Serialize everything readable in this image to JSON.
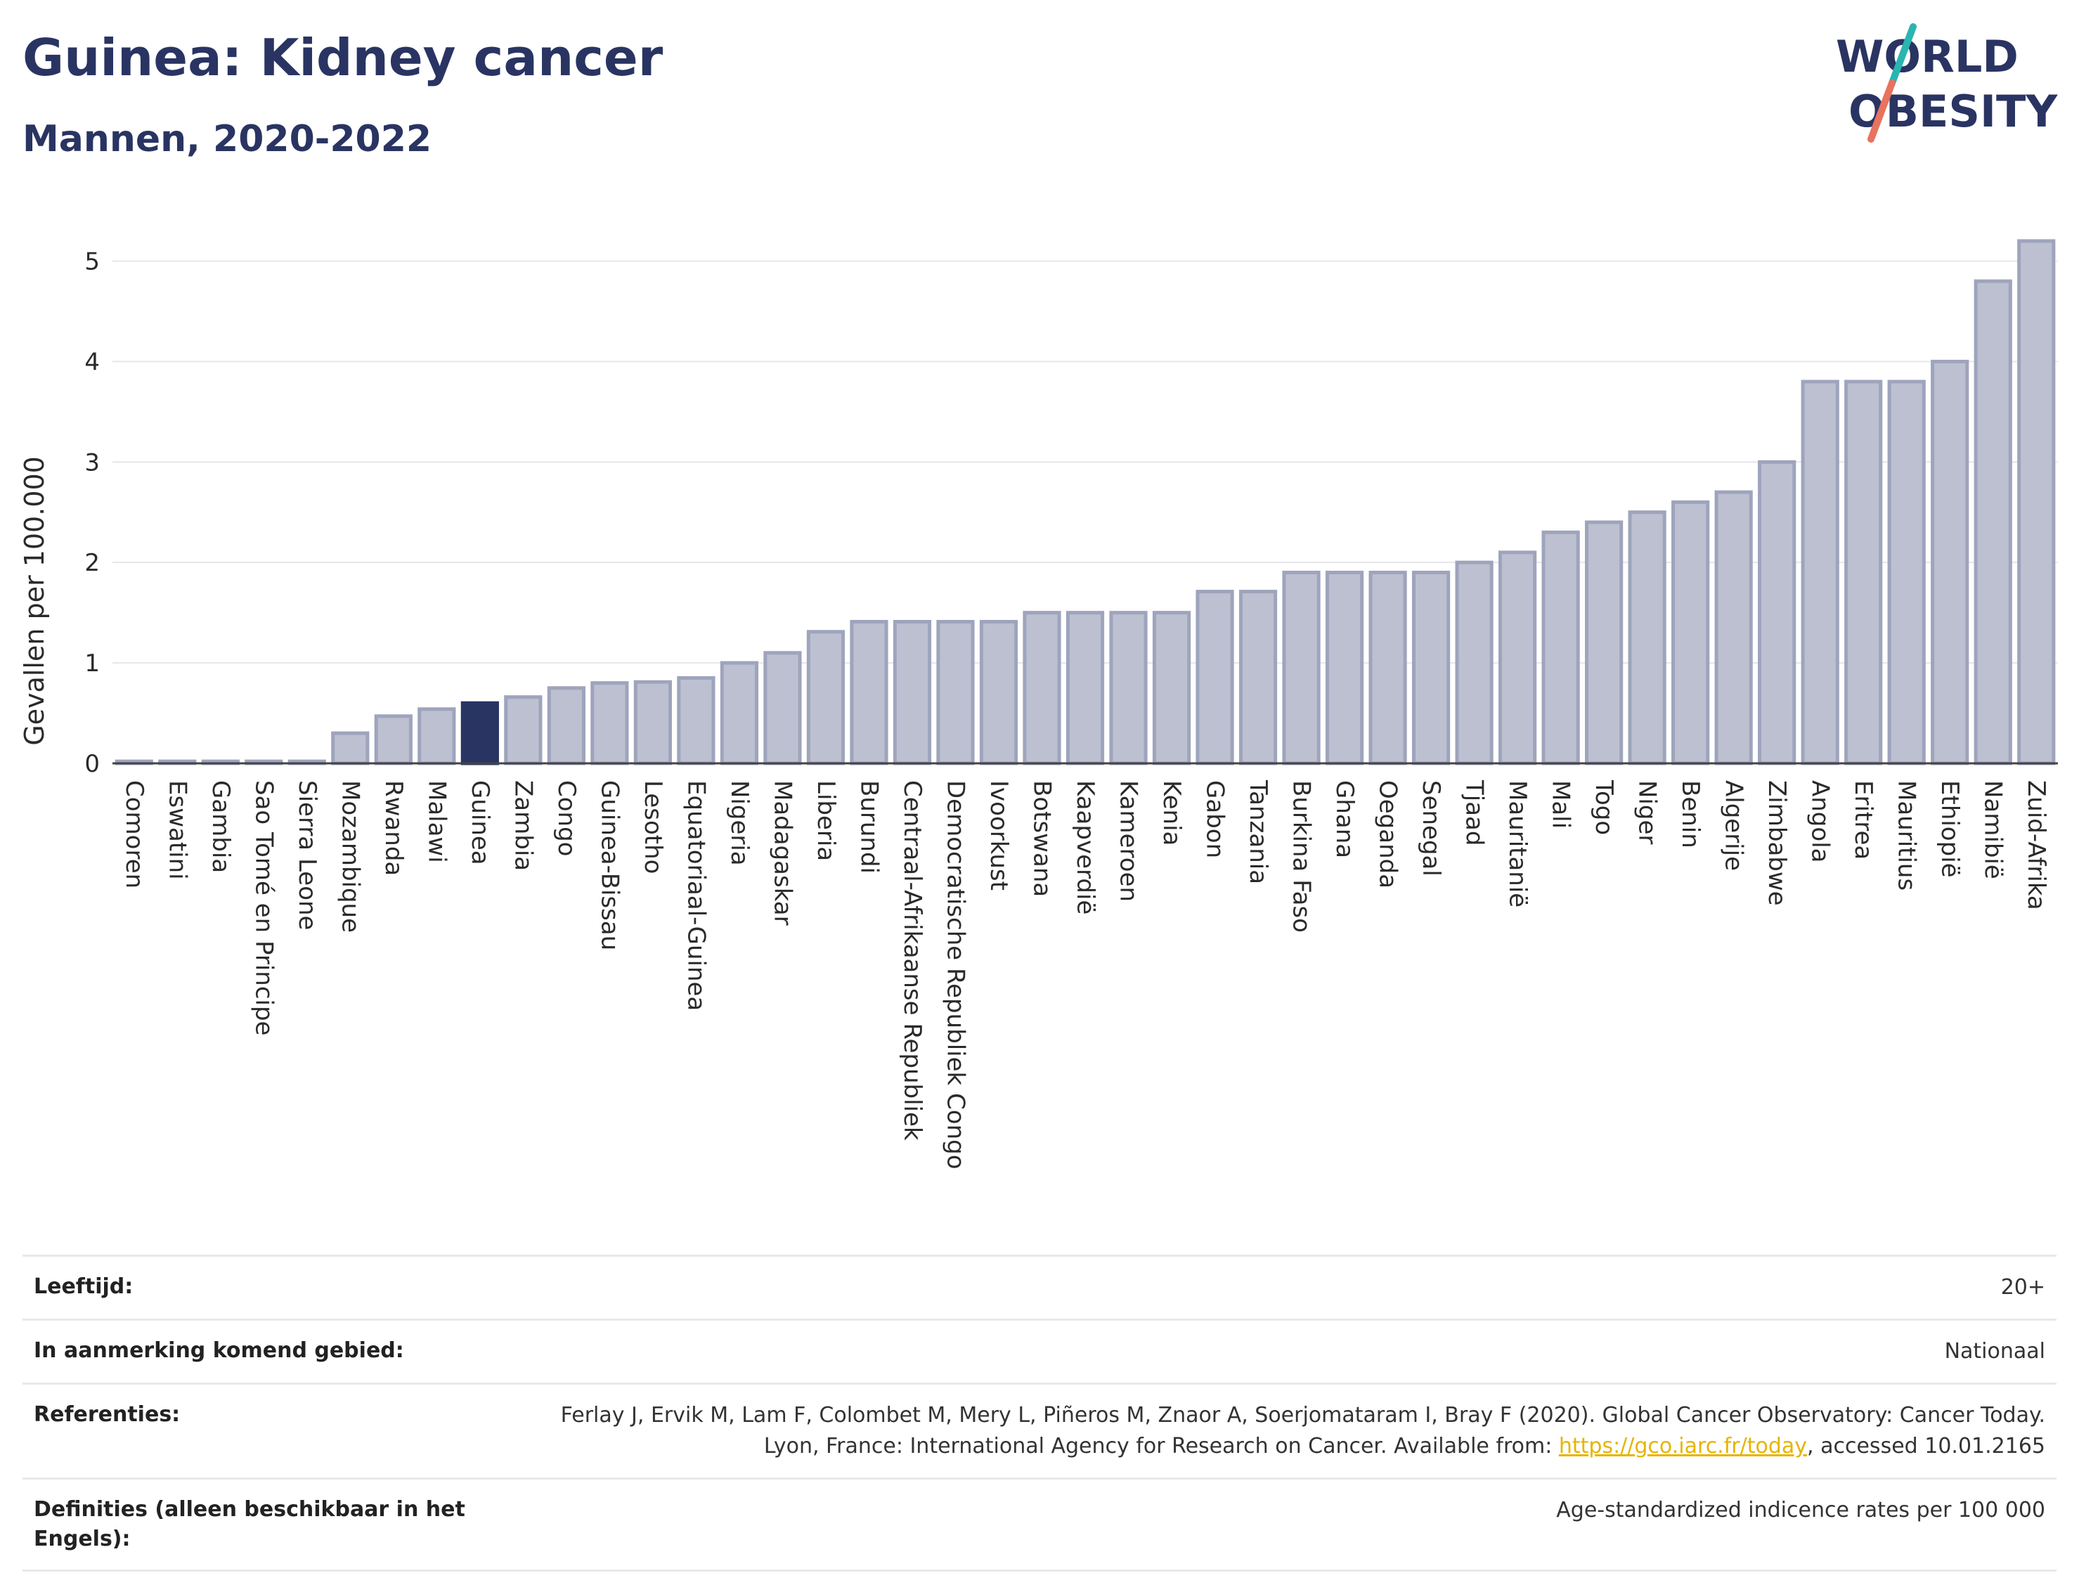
{
  "title": "Guinea: Kidney cancer",
  "subtitle": "Mannen, 2020-2022",
  "logo": {
    "line1": "WORLD",
    "line2": "OBESITY"
  },
  "colors": {
    "highlight": "#293462",
    "bar_fill": "#bcc0d0",
    "bar_stroke": "#9ea4bc",
    "title": "#293462",
    "logo_teal": "#2ab5b0",
    "logo_coral": "#e8735f"
  },
  "chart_data": {
    "type": "bar",
    "ylabel": "Gevallen per 100.000",
    "ylim": [
      0,
      5.5
    ],
    "yticks": [
      0,
      1,
      2,
      3,
      4,
      5
    ],
    "grid": true,
    "highlight": "Guinea",
    "categories": [
      "Comoren",
      "Eswatini",
      "Gambia",
      "Sao Tomé en Principe",
      "Sierra Leone",
      "Mozambique",
      "Rwanda",
      "Malawi",
      "Guinea",
      "Zambia",
      "Congo",
      "Guinea-Bissau",
      "Lesotho",
      "Equatoriaal-Guinea",
      "Nigeria",
      "Madagaskar",
      "Liberia",
      "Burundi",
      "Centraal-Afrikaanse Republiek",
      "Democratische Republiek Congo",
      "Ivoorkust",
      "Botswana",
      "Kaapverdië",
      "Kameroen",
      "Kenia",
      "Gabon",
      "Tanzania",
      "Burkina Faso",
      "Ghana",
      "Oeganda",
      "Senegal",
      "Tjaad",
      "Mauritanië",
      "Mali",
      "Togo",
      "Niger",
      "Benin",
      "Algerije",
      "Zimbabwe",
      "Angola",
      "Eritrea",
      "Mauritius",
      "Ethiopië",
      "Namibië",
      "Zuid-Afrika"
    ],
    "values": [
      0.02,
      0.02,
      0.02,
      0.02,
      0.02,
      0.3,
      0.47,
      0.54,
      0.6,
      0.66,
      0.75,
      0.8,
      0.81,
      0.85,
      1.0,
      1.1,
      1.31,
      1.41,
      1.41,
      1.41,
      1.41,
      1.5,
      1.5,
      1.5,
      1.5,
      1.71,
      1.71,
      1.9,
      1.9,
      1.9,
      1.9,
      2.0,
      2.1,
      2.3,
      2.4,
      2.5,
      2.6,
      2.7,
      3.0,
      3.8,
      3.8,
      3.8,
      4.0,
      4.8,
      5.2
    ]
  },
  "meta": [
    {
      "key": "Leeftijd:",
      "value": "20+"
    },
    {
      "key": "In aanmerking komend gebied:",
      "value": "Nationaal"
    },
    {
      "key": "Referenties:",
      "value_pre": "Ferlay J, Ervik M, Lam F, Colombet M, Mery L, Piñeros M, Znaor A, Soerjomataram I, Bray F (2020). Global Cancer Observatory: Cancer Today. Lyon, France: International Agency for Research on Cancer. Available from: ",
      "link": "https://gco.iarc.fr/today",
      "value_post": ", accessed 10.01.2165"
    },
    {
      "key": "Definities (alleen beschikbaar in het Engels):",
      "value": "Age-standardized indicence rates per 100 000"
    }
  ]
}
